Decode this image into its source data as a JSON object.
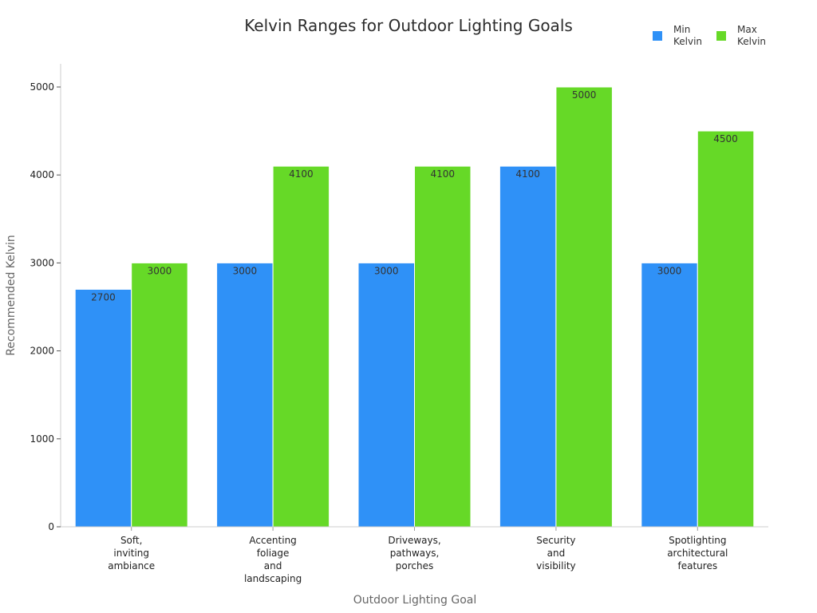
{
  "chart_data": {
    "type": "bar",
    "title": "Kelvin Ranges for Outdoor Lighting Goals",
    "xlabel": "Outdoor Lighting Goal",
    "ylabel": "Recommended Kelvin",
    "ylim": [
      0,
      5200
    ],
    "yticks": [
      0,
      1000,
      2000,
      3000,
      4000,
      5000
    ],
    "grid": false,
    "legend_position": "top-right",
    "categories": [
      "Soft, inviting ambiance",
      "Accenting foliage and landscaping",
      "Driveways, pathways, porches",
      "Security and visibility",
      "Spotlighting architectural features"
    ],
    "category_lines": [
      [
        "Soft,",
        "inviting",
        "ambiance"
      ],
      [
        "Accenting",
        "foliage",
        "and",
        "landscaping"
      ],
      [
        "Driveways,",
        "pathways,",
        "porches"
      ],
      [
        "Security",
        "and",
        "visibility"
      ],
      [
        "Spotlighting",
        "architectural",
        "features"
      ]
    ],
    "series": [
      {
        "name": "Min Kelvin",
        "legend_lines": [
          "Min",
          "Kelvin"
        ],
        "color": "#2f91f7",
        "values": [
          2700,
          3000,
          3000,
          4100,
          3000
        ]
      },
      {
        "name": "Max Kelvin",
        "legend_lines": [
          "Max",
          "Kelvin"
        ],
        "color": "#66d927",
        "values": [
          3000,
          4100,
          4100,
          5000,
          4500
        ]
      }
    ]
  }
}
